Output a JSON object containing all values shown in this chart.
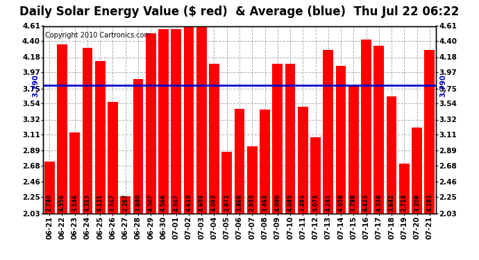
{
  "title": "Daily Solar Energy Value ($ red)  & Average (blue)  Thu Jul 22 06:22",
  "copyright": "Copyright 2010 Cartronics.com",
  "average": 3.79,
  "categories": [
    "06-21",
    "06-22",
    "06-23",
    "06-24",
    "06-25",
    "06-26",
    "06-27",
    "06-28",
    "06-29",
    "06-30",
    "07-01",
    "07-02",
    "07-03",
    "07-04",
    "07-05",
    "07-06",
    "07-07",
    "07-08",
    "07-09",
    "07-10",
    "07-11",
    "07-12",
    "07-13",
    "07-14",
    "07-15",
    "07-16",
    "07-17",
    "07-18",
    "07-19",
    "07-20",
    "07-21"
  ],
  "values": [
    2.74,
    4.356,
    3.146,
    4.313,
    4.131,
    3.567,
    2.267,
    3.88,
    4.507,
    4.566,
    4.567,
    4.61,
    4.603,
    4.093,
    2.871,
    3.468,
    2.953,
    3.463,
    4.09,
    4.085,
    3.493,
    3.073,
    4.281,
    4.058,
    3.788,
    4.423,
    4.338,
    3.642,
    2.714,
    3.208,
    4.283
  ],
  "bar_color": "#ff0000",
  "avg_line_color": "#0000cc",
  "background_color": "#ffffff",
  "ylim_min": 2.03,
  "ylim_max": 4.61,
  "yticks": [
    2.03,
    2.25,
    2.46,
    2.68,
    2.89,
    3.11,
    3.32,
    3.54,
    3.75,
    3.97,
    4.18,
    4.4,
    4.61
  ],
  "grid_color": "#b0b0b0",
  "title_fontsize": 12,
  "copyright_fontsize": 7,
  "bar_label_fontsize": 5.8,
  "avg_label": "3.790",
  "avg_label_fontsize": 7.5,
  "tick_label_fontsize": 7.5
}
